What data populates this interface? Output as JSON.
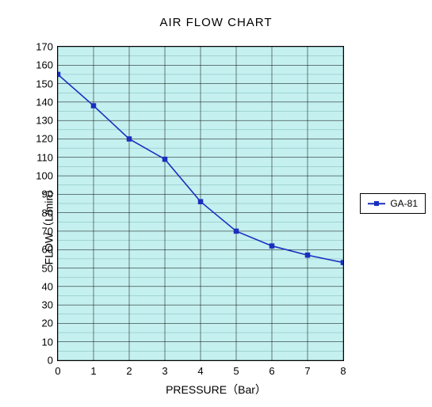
{
  "chart": {
    "type": "line",
    "title": "AIR FLOW CHART",
    "title_fontsize": 15,
    "xlabel": "PRESSURE（Bar）",
    "ylabel": "FLOW（L/min）",
    "label_fontsize": 14,
    "background_color": "#ffffff",
    "plot_background_color": "#c4f0ef",
    "grid_color": "#000000",
    "grid_width": 0.5,
    "minor_grid_color": "#6aa8a8",
    "minor_grid_width": 0.4,
    "border_color": "#000000",
    "xlim": [
      0,
      8
    ],
    "ylim": [
      0,
      170
    ],
    "xtick_step": 1,
    "ytick_step": 10,
    "yminor_step": 5,
    "xticks": [
      "0",
      "1",
      "2",
      "3",
      "4",
      "5",
      "6",
      "7",
      "8"
    ],
    "yticks": [
      "0",
      "10",
      "20",
      "30",
      "40",
      "50",
      "60",
      "70",
      "80",
      "90",
      "100",
      "110",
      "120",
      "130",
      "140",
      "150",
      "160",
      "170"
    ],
    "tick_fontsize": 13,
    "series": {
      "name": "GA-81",
      "color": "#1a2fbf",
      "line_width": 1.6,
      "marker_style": "square",
      "marker_size": 6,
      "marker_fill": "#1a2fbf",
      "x": [
        0,
        1,
        2,
        3,
        4,
        5,
        6,
        7,
        8
      ],
      "y": [
        155,
        138,
        120,
        109,
        86,
        70,
        62,
        57,
        53
      ]
    },
    "legend": {
      "position": "right",
      "border_color": "#000000",
      "background_color": "#ffffff",
      "fontsize": 12
    }
  }
}
